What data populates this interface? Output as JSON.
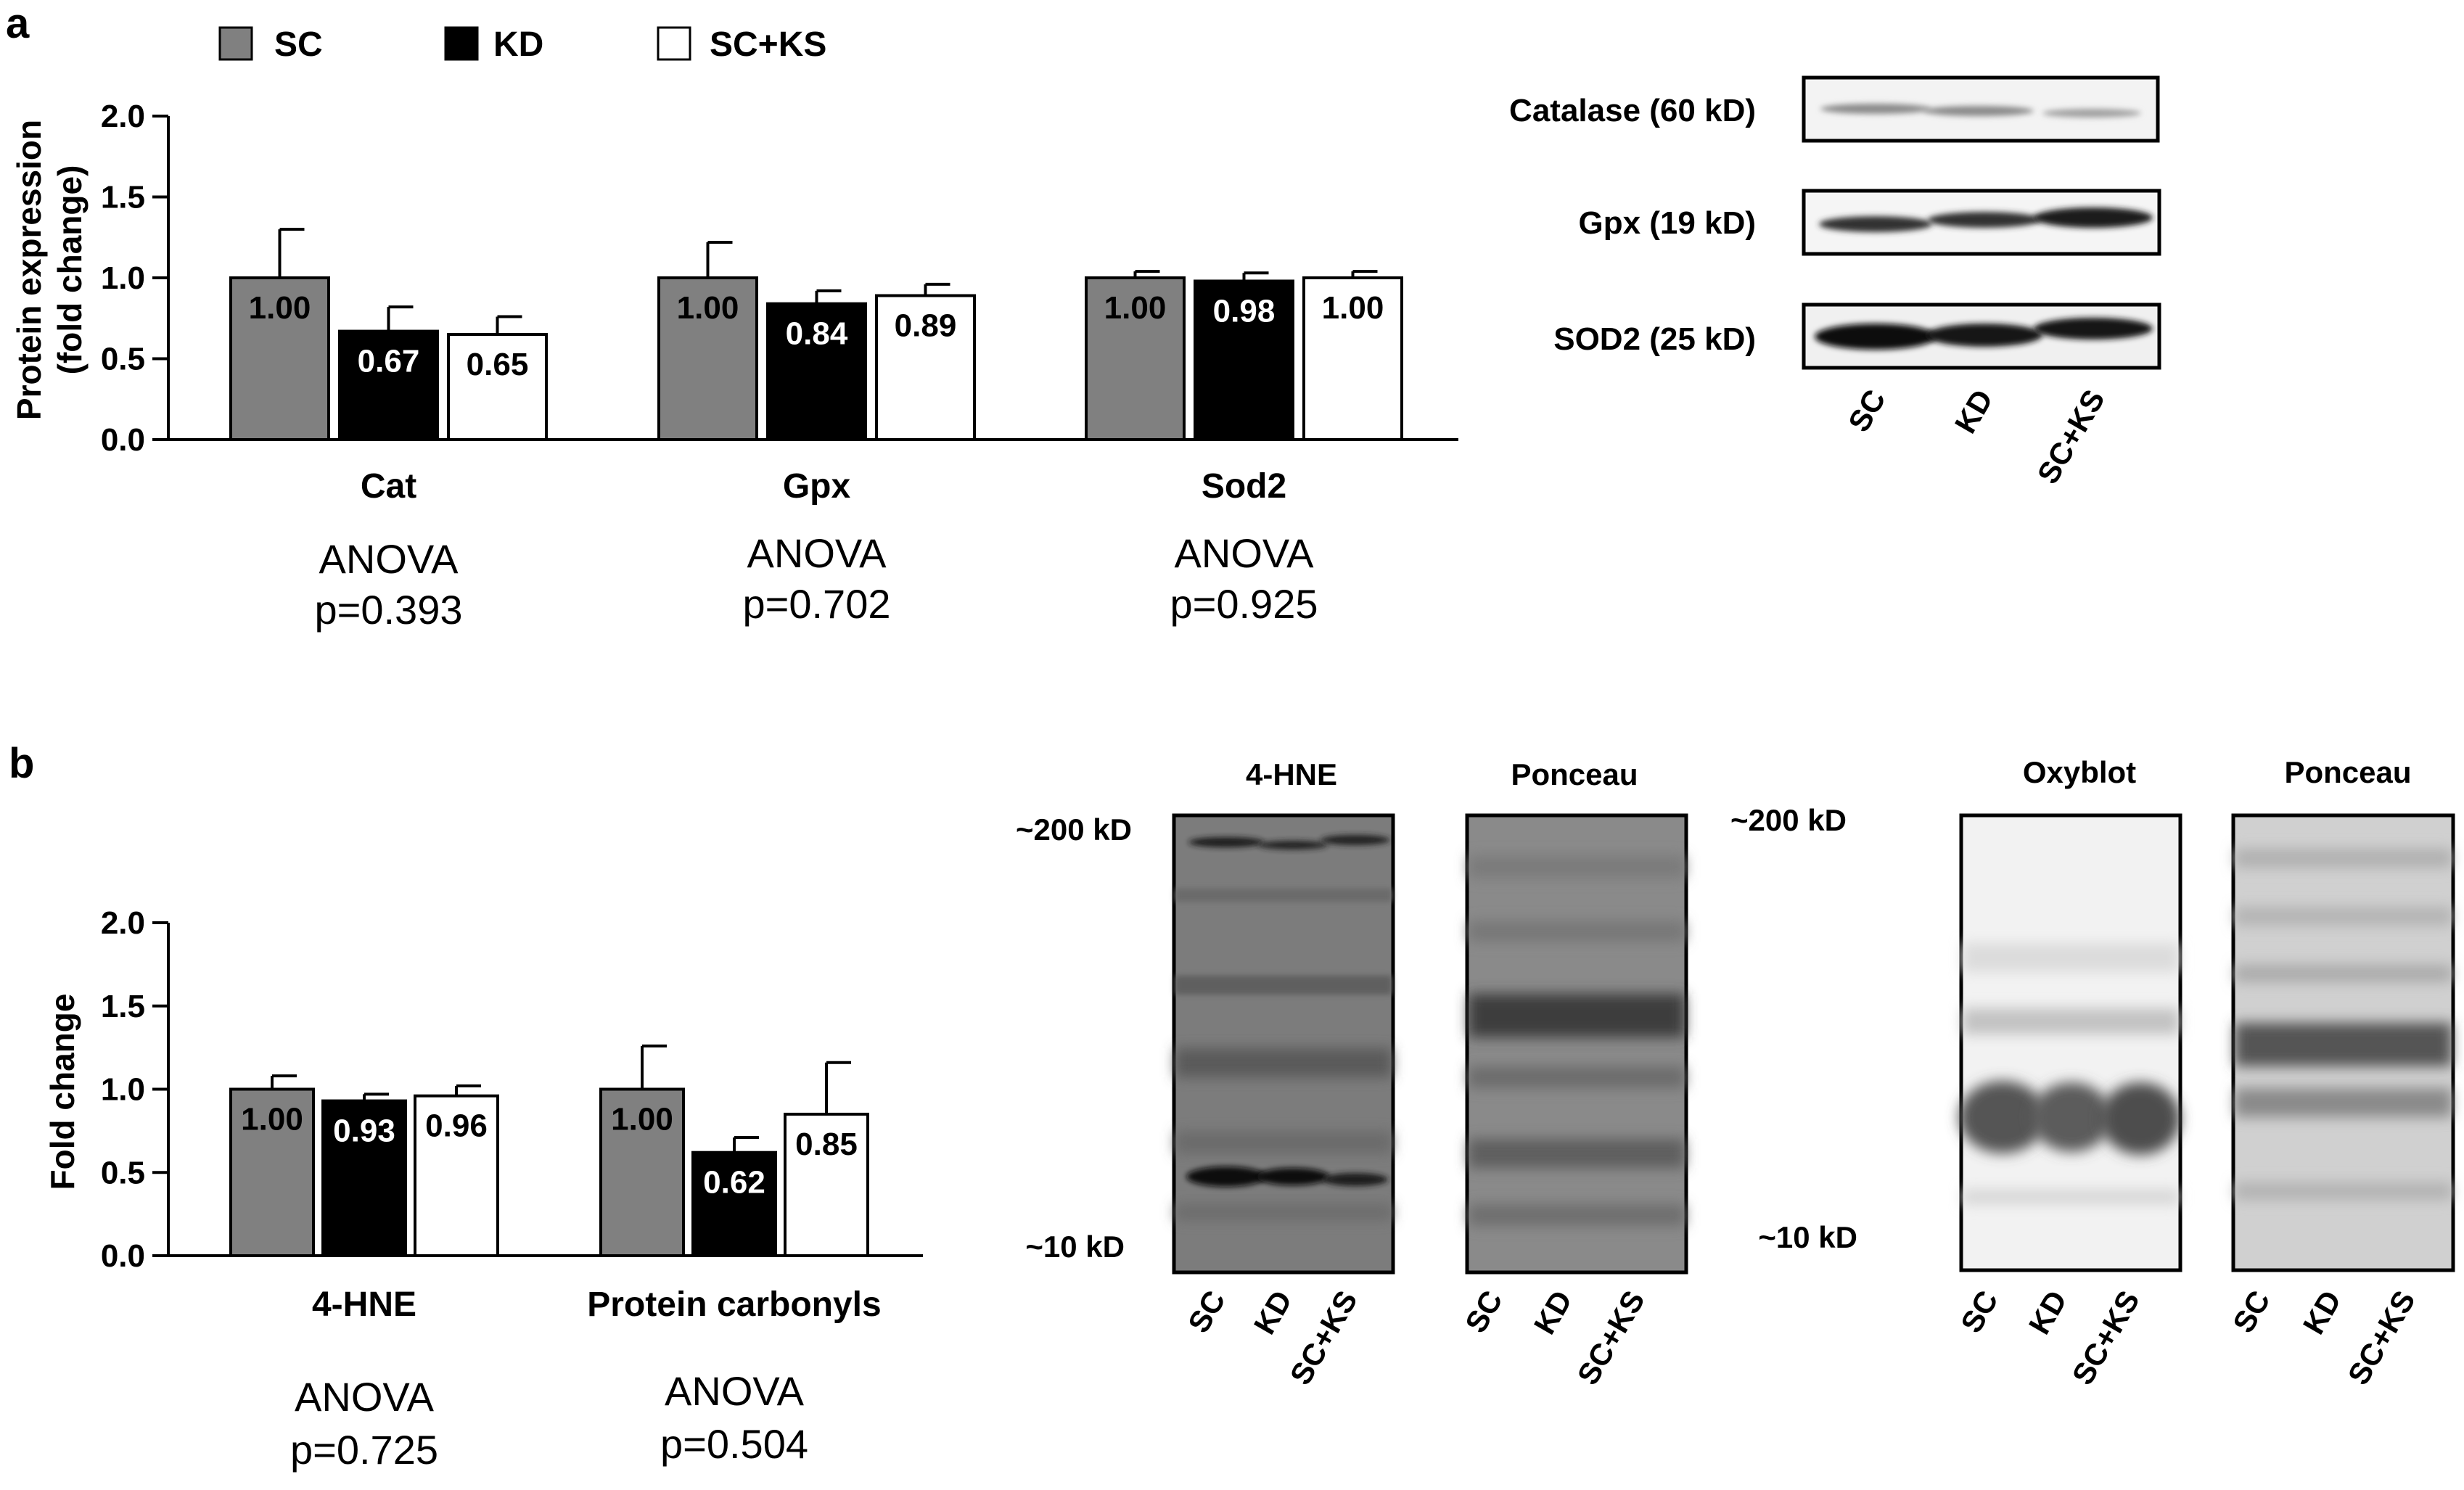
{
  "panel_labels": {
    "a": "a",
    "b": "b"
  },
  "legend": [
    {
      "label": "SC",
      "color": "#808080"
    },
    {
      "label": "KD",
      "color": "#000000"
    },
    {
      "label": "SC+KS",
      "color": "#ffffff"
    }
  ],
  "chart_data": [
    {
      "type": "bar",
      "ylabel": [
        "Protein expression",
        "(fold change)"
      ],
      "ylim": [
        0,
        2.0
      ],
      "yticks": [
        "0.0",
        "0.5",
        "1.0",
        "1.5",
        "2.0"
      ],
      "categories": [
        "Cat",
        "Gpx",
        "Sod2"
      ],
      "series": [
        {
          "name": "SC",
          "values": [
            1.0,
            1.0,
            1.0
          ],
          "labels": [
            "1.00",
            "1.00",
            "1.00"
          ],
          "error": [
            0.3,
            0.22,
            0.04
          ]
        },
        {
          "name": "KD",
          "values": [
            0.67,
            0.84,
            0.98
          ],
          "labels": [
            "0.67",
            "0.84",
            "0.98"
          ],
          "error": [
            0.15,
            0.08,
            0.05
          ]
        },
        {
          "name": "SC+KS",
          "values": [
            0.65,
            0.89,
            1.0
          ],
          "labels": [
            "0.65",
            "0.89",
            "1.00"
          ],
          "error": [
            0.11,
            0.07,
            0.04
          ]
        }
      ],
      "annotations": [
        [
          "ANOVA",
          "p=0.393"
        ],
        [
          "ANOVA",
          "p=0.702"
        ],
        [
          "ANOVA",
          "p=0.925"
        ]
      ]
    },
    {
      "type": "bar",
      "ylabel": [
        "Fold change"
      ],
      "ylim": [
        0,
        2.0
      ],
      "yticks": [
        "0.0",
        "0.5",
        "1.0",
        "1.5",
        "2.0"
      ],
      "categories": [
        "4-HNE",
        "Protein carbonyls"
      ],
      "series": [
        {
          "name": "SC",
          "values": [
            1.0,
            1.0
          ],
          "labels": [
            "1.00",
            "1.00"
          ],
          "error": [
            0.08,
            0.26
          ]
        },
        {
          "name": "KD",
          "values": [
            0.93,
            0.62
          ],
          "labels": [
            "0.93",
            "0.62"
          ],
          "error": [
            0.04,
            0.09
          ]
        },
        {
          "name": "SC+KS",
          "values": [
            0.96,
            0.85
          ],
          "labels": [
            "0.96",
            "0.85"
          ],
          "error": [
            0.06,
            0.31
          ]
        }
      ],
      "annotations": [
        [
          "ANOVA",
          "p=0.725"
        ],
        [
          "ANOVA",
          "p=0.504"
        ]
      ]
    }
  ],
  "blot_a": {
    "rows": [
      "Catalase (60 kD)",
      "Gpx (19 kD)",
      "SOD2 (25 kD)"
    ],
    "lanes": [
      "SC",
      "KD",
      "SC+KS"
    ]
  },
  "blot_b": {
    "titles": [
      "4-HNE",
      "Ponceau",
      "Oxyblot",
      "Ponceau"
    ],
    "markers": [
      "~200 kD",
      "~10 kD",
      "~200 kD",
      "~10 kD"
    ],
    "lanes": [
      "SC",
      "KD",
      "SC+KS"
    ]
  }
}
